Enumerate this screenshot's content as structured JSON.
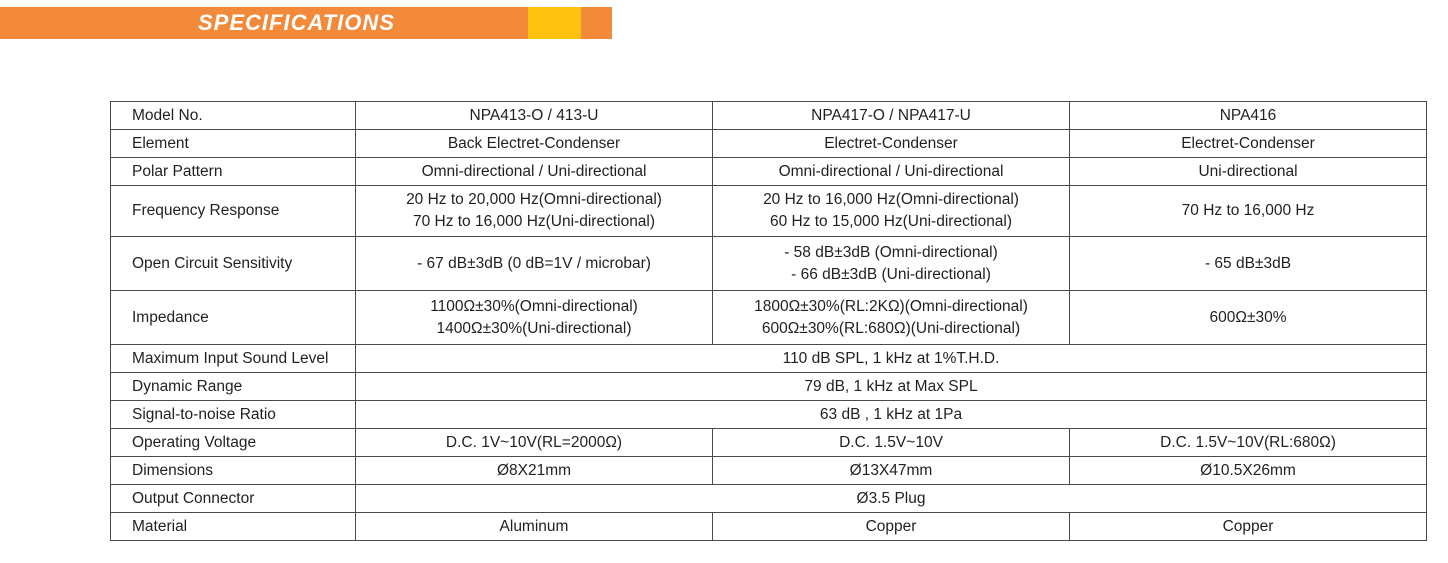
{
  "banner": {
    "title": "SPECIFICATIONS"
  },
  "table": {
    "rows": [
      {
        "label": "Model No.",
        "cells": [
          "NPA413-O / 413-U",
          "NPA417-O / NPA417-U",
          "NPA416"
        ]
      },
      {
        "label": "Element",
        "cells": [
          "Back Electret-Condenser",
          "Electret-Condenser",
          "Electret-Condenser"
        ]
      },
      {
        "label": "Polar Pattern",
        "cells": [
          "Omni-directional / Uni-directional",
          "Omni-directional / Uni-directional",
          "Uni-directional"
        ]
      },
      {
        "label": "Frequency Response",
        "cells": [
          [
            "20 Hz to 20,000 Hz(Omni-directional)",
            "70 Hz to 16,000 Hz(Uni-directional)"
          ],
          [
            "20 Hz to 16,000 Hz(Omni-directional)",
            "60 Hz to 15,000 Hz(Uni-directional)"
          ],
          "70 Hz to 16,000 Hz"
        ]
      },
      {
        "label": "Open Circuit Sensitivity",
        "cells": [
          "- 67 dB±3dB (0 dB=1V / microbar)",
          [
            "- 58 dB±3dB (Omni-directional)",
            "- 66 dB±3dB (Uni-directional)"
          ],
          "- 65 dB±3dB"
        ]
      },
      {
        "label": "Impedance",
        "cells": [
          [
            "1100Ω±30%(Omni-directional)",
            "1400Ω±30%(Uni-directional)"
          ],
          [
            "1800Ω±30%(RL:2KΩ)(Omni-directional)",
            "600Ω±30%(RL:680Ω)(Uni-directional)"
          ],
          "600Ω±30%"
        ]
      },
      {
        "label": "Maximum Input Sound Level",
        "span": "110 dB SPL, 1 kHz at 1%T.H.D."
      },
      {
        "label": "Dynamic Range",
        "span": "79 dB, 1 kHz at Max SPL"
      },
      {
        "label": "Signal-to-noise Ratio",
        "span": "63 dB , 1 kHz at 1Pa"
      },
      {
        "label": "Operating Voltage",
        "cells": [
          "D.C. 1V~10V(RL=2000Ω)",
          "D.C. 1.5V~10V",
          "D.C. 1.5V~10V(RL:680Ω)"
        ]
      },
      {
        "label": "Dimensions",
        "cells": [
          "Ø8X21mm",
          "Ø13X47mm",
          "Ø10.5X26mm"
        ]
      },
      {
        "label": "Output Connector",
        "span": "Ø3.5 Plug"
      },
      {
        "label": "Material",
        "cells": [
          "Aluminum",
          "Copper",
          "Copper"
        ]
      }
    ]
  }
}
